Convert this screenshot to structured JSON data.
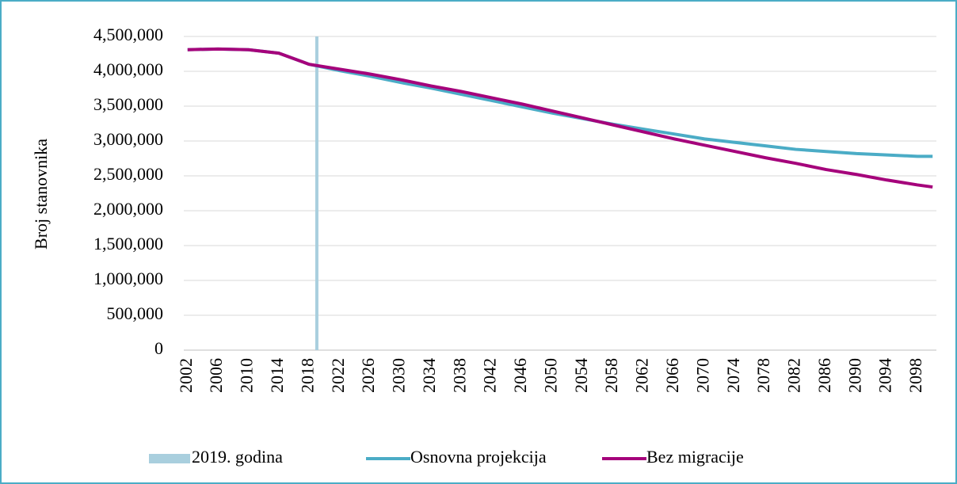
{
  "chart_data": {
    "type": "line",
    "y_axis_label": "Broj stanovnika",
    "x": [
      2002,
      2006,
      2010,
      2014,
      2018,
      2022,
      2026,
      2030,
      2034,
      2038,
      2042,
      2046,
      2050,
      2054,
      2058,
      2062,
      2066,
      2070,
      2074,
      2078,
      2082,
      2086,
      2090,
      2094,
      2098,
      2100
    ],
    "xlim": [
      2001.5,
      2100.5
    ],
    "xticks": [
      2002,
      2006,
      2010,
      2014,
      2018,
      2022,
      2026,
      2030,
      2034,
      2038,
      2042,
      2046,
      2050,
      2054,
      2058,
      2062,
      2066,
      2070,
      2074,
      2078,
      2082,
      2086,
      2090,
      2094,
      2098
    ],
    "ylim": [
      0,
      4500000
    ],
    "yticks": [
      0,
      {
        "value": 500000,
        "label": "500,000"
      },
      {
        "value": 1000000,
        "label": "1,000,000"
      },
      {
        "value": 1500000,
        "label": "1,500,000"
      },
      {
        "value": 2000000,
        "label": "2,000,000"
      },
      {
        "value": 2500000,
        "label": "2,500,000"
      },
      {
        "value": 3000000,
        "label": "3,000,000"
      },
      {
        "value": 3500000,
        "label": "3,500,000"
      },
      {
        "value": 4000000,
        "label": "4,000,000"
      },
      {
        "value": 4500000,
        "label": "4,500,000"
      }
    ],
    "grid": true,
    "legend": "bottom",
    "marker": {
      "name": "2019. godina",
      "color": "#a9cfde",
      "x": 2019,
      "value": 4500000
    },
    "series": [
      {
        "name": "Osnovna projekcija",
        "color": "#4bacc6",
        "values": [
          4310000,
          4320000,
          4310000,
          4260000,
          4100000,
          4010000,
          3930000,
          3840000,
          3760000,
          3670000,
          3580000,
          3490000,
          3400000,
          3320000,
          3240000,
          3170000,
          3100000,
          3030000,
          2980000,
          2930000,
          2880000,
          2850000,
          2820000,
          2800000,
          2780000,
          2780000
        ]
      },
      {
        "name": "Bez migracije",
        "color": "#a5027b",
        "values": [
          4310000,
          4320000,
          4310000,
          4260000,
          4100000,
          4030000,
          3960000,
          3880000,
          3790000,
          3710000,
          3620000,
          3530000,
          3430000,
          3330000,
          3230000,
          3130000,
          3030000,
          2940000,
          2850000,
          2760000,
          2680000,
          2590000,
          2520000,
          2440000,
          2370000,
          2340000
        ]
      }
    ]
  }
}
